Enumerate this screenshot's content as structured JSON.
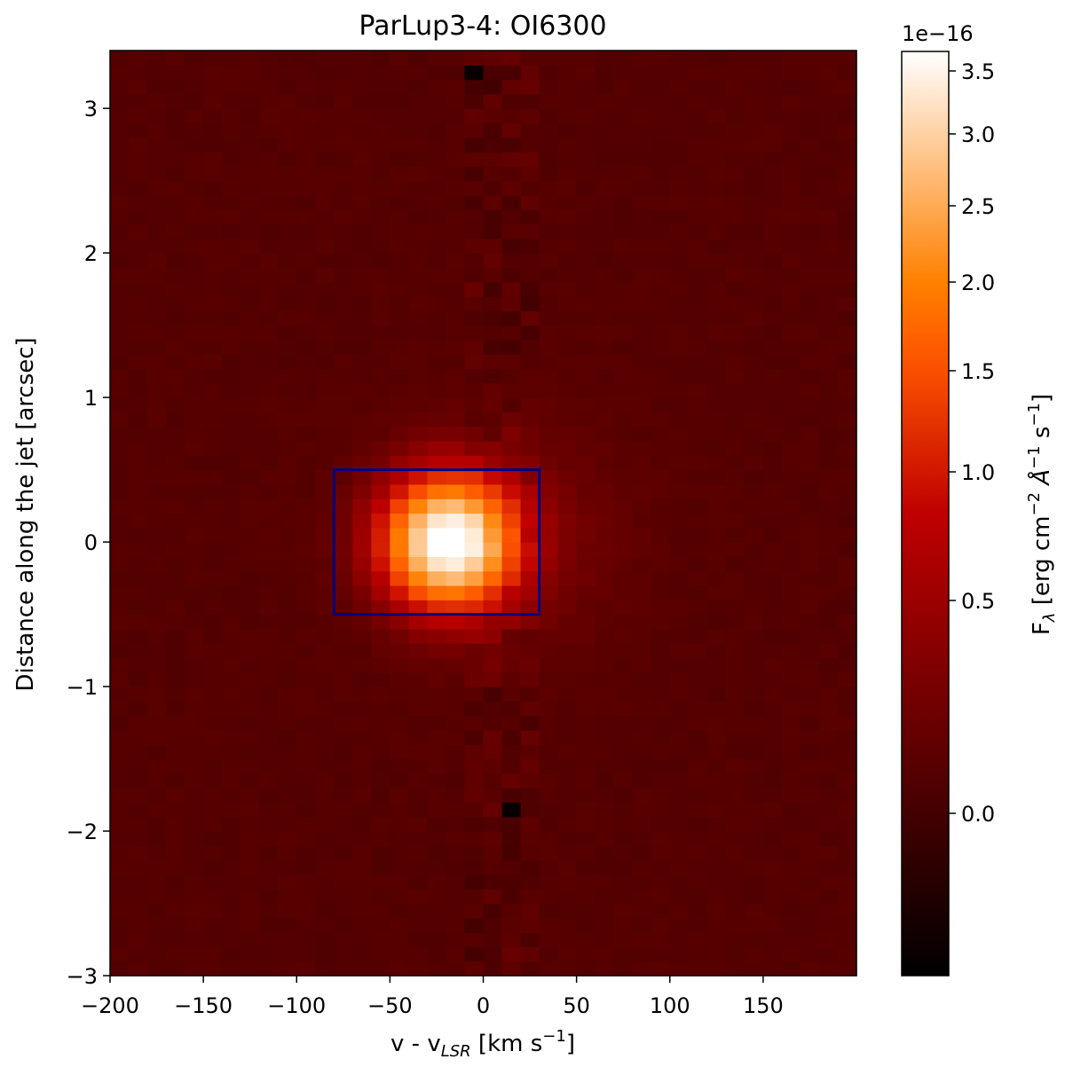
{
  "chart_data": {
    "type": "heatmap",
    "title": "ParLup3-4: OI6300",
    "xlabel": {
      "main": "v - v",
      "sub": "LSR",
      "unit_pre": " [km s",
      "unit_sup": "−1",
      "unit_post": "]"
    },
    "ylabel": "Distance along the jet [arcsec]",
    "xlim": [
      -200,
      200
    ],
    "ylim": [
      -3,
      3.4
    ],
    "xticks": [
      -200,
      -150,
      -100,
      -50,
      0,
      50,
      100,
      150
    ],
    "xtick_labels": [
      "−200",
      "−150",
      "−100",
      "−50",
      "0",
      "50",
      "100",
      "150"
    ],
    "yticks": [
      -3,
      -2,
      -1,
      0,
      1,
      2,
      3
    ],
    "ytick_labels": [
      "−3",
      "−2",
      "−1",
      "0",
      "1",
      "2",
      "3"
    ],
    "grid": false,
    "colorbar": {
      "label": {
        "main": "F",
        "sub": "λ",
        "unit": " [erg cm",
        "sup1": "−2",
        "ang": " Å",
        "sup2": "−1",
        "s": " s",
        "sup3": "−1",
        "close": "]"
      },
      "offset_text": "1e−16",
      "range": [
        -0.4,
        3.65
      ],
      "ticks": [
        0.0,
        0.5,
        1.0,
        1.5,
        2.0,
        2.5,
        3.0,
        3.5
      ],
      "tick_labels": [
        "0.0",
        "0.5",
        "1.0",
        "1.5",
        "2.0",
        "2.5",
        "3.0",
        "3.5"
      ],
      "colormap": "gist_heat"
    },
    "emission_peak": {
      "x": -18,
      "y": 0.0,
      "value": 3.6
    },
    "background_value": 0.1,
    "dark_pixels": [
      {
        "x": 18,
        "y": -1.8,
        "value": -0.35
      },
      {
        "x": -9,
        "y": 3.3,
        "value": -0.35
      }
    ],
    "integration_box": {
      "x": [
        -80,
        30
      ],
      "y": [
        -0.5,
        0.5
      ],
      "color": "#000080"
    }
  }
}
